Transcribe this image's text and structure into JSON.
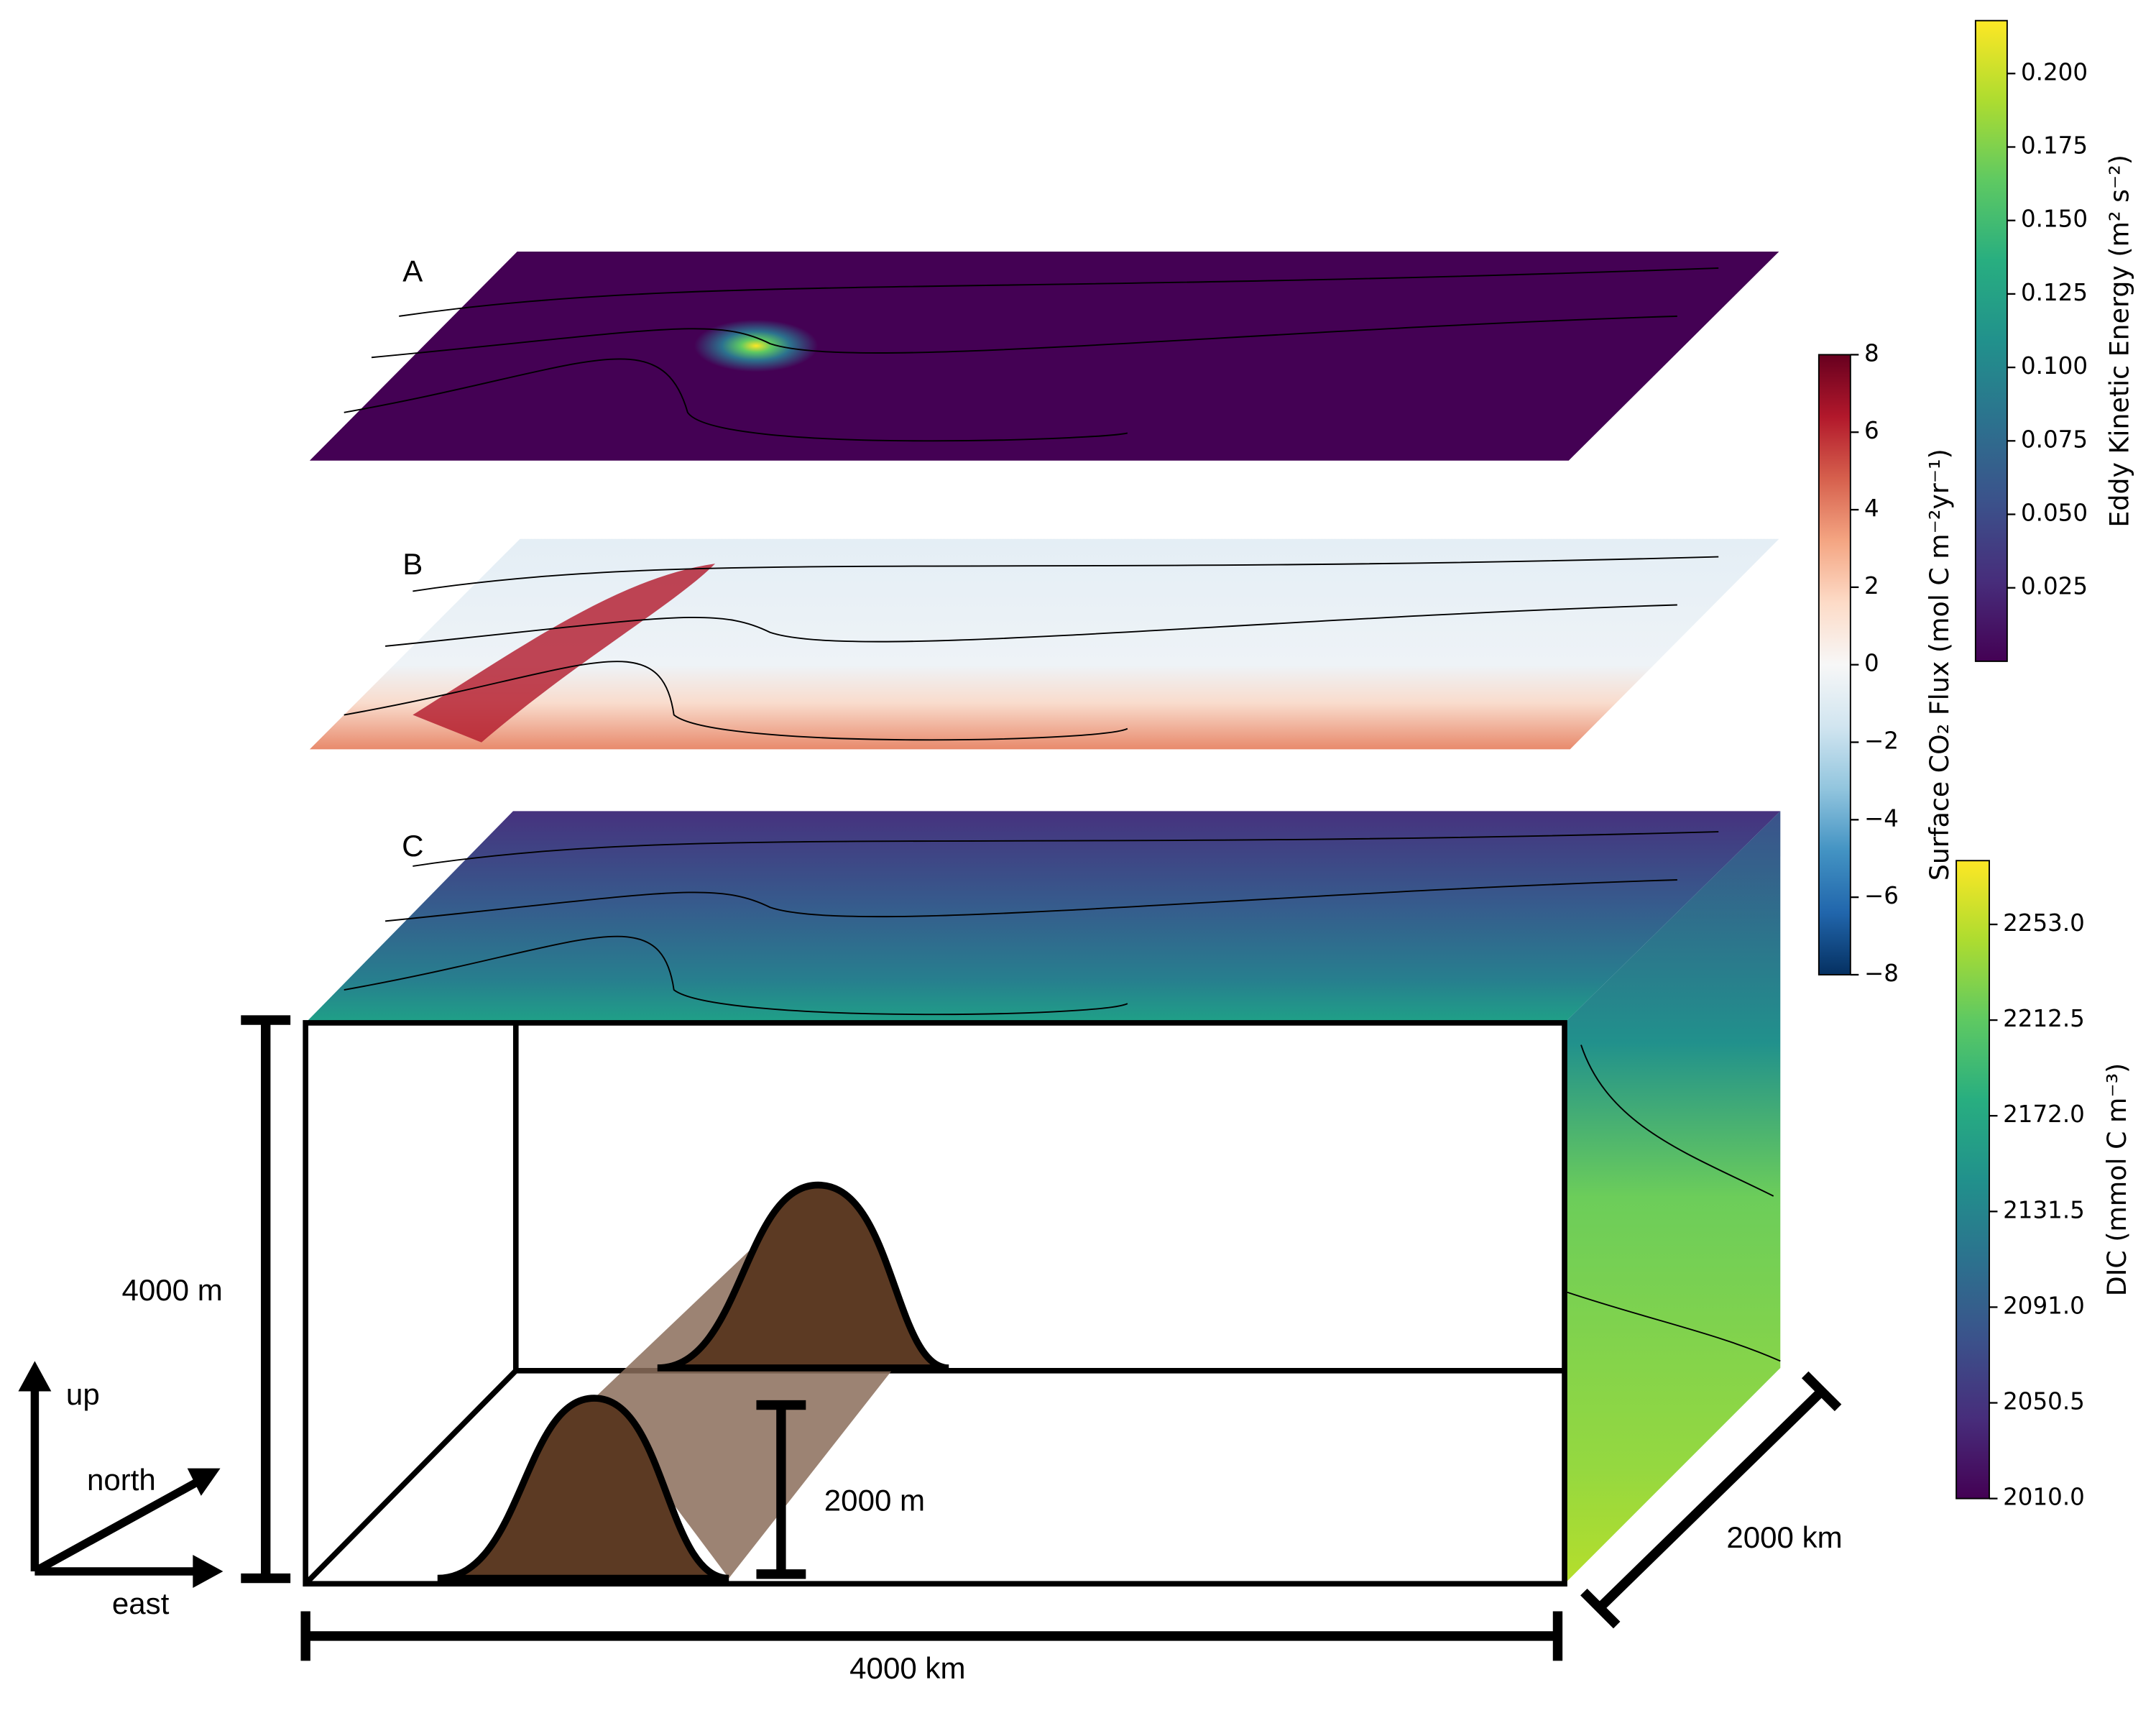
{
  "panels": [
    {
      "label": "A"
    },
    {
      "label": "B"
    },
    {
      "label": "C"
    }
  ],
  "colorbars": [
    {
      "label": "Eddy Kinetic Energy (m² s⁻²)",
      "lim": [
        0,
        0.218
      ],
      "ticks": [
        0.025,
        {
          "value": 0.05,
          "label": "0.050"
        },
        0.075,
        {
          "value": 0.1,
          "label": "0.100"
        },
        0.125,
        {
          "value": 0.15,
          "label": "0.150"
        },
        0.175,
        {
          "value": 0.2,
          "label": "0.200"
        }
      ],
      "colors": [
        "#440154",
        "#472d7b",
        "#3b528b",
        "#2c728e",
        "#21918c",
        "#28ae80",
        "#5ec962",
        "#addc30",
        "#fde725"
      ]
    },
    {
      "label": "Surface CO₂ Flux (mol C m⁻²yr⁻¹)",
      "lim": [
        -8,
        8
      ],
      "ticks": [
        {
          "value": -8,
          "label": "−8"
        },
        {
          "value": -6,
          "label": "−6"
        },
        {
          "value": -4,
          "label": "−4"
        },
        {
          "value": -2,
          "label": "−2"
        },
        0,
        2,
        4,
        6,
        8
      ],
      "colors": [
        "#053061",
        "#2166ac",
        "#4393c3",
        "#92c5de",
        "#d1e5f0",
        "#f7f7f7",
        "#fddbc7",
        "#f4a582",
        "#d6604d",
        "#b2182b",
        "#67001f"
      ]
    },
    {
      "label": "DIC (mmol C m⁻³)",
      "lim": [
        2010,
        2280
      ],
      "ticks": [
        {
          "value": 2010,
          "label": "2010.0"
        },
        2050.5,
        {
          "value": 2091,
          "label": "2091.0"
        },
        2131.5,
        {
          "value": 2172,
          "label": "2172.0"
        },
        2212.5,
        {
          "value": 2253,
          "label": "2253.0"
        }
      ],
      "colors": [
        "#440154",
        "#472d7b",
        "#3b528b",
        "#2c728e",
        "#21918c",
        "#28ae80",
        "#5ec962",
        "#addc30",
        "#fde725"
      ]
    }
  ],
  "dimensions": {
    "depth": "4000 m",
    "ridge_height": "2000 m",
    "length": "4000 km",
    "width": "2000 km"
  },
  "axes": {
    "up": "up",
    "north": "north",
    "east": "east"
  }
}
